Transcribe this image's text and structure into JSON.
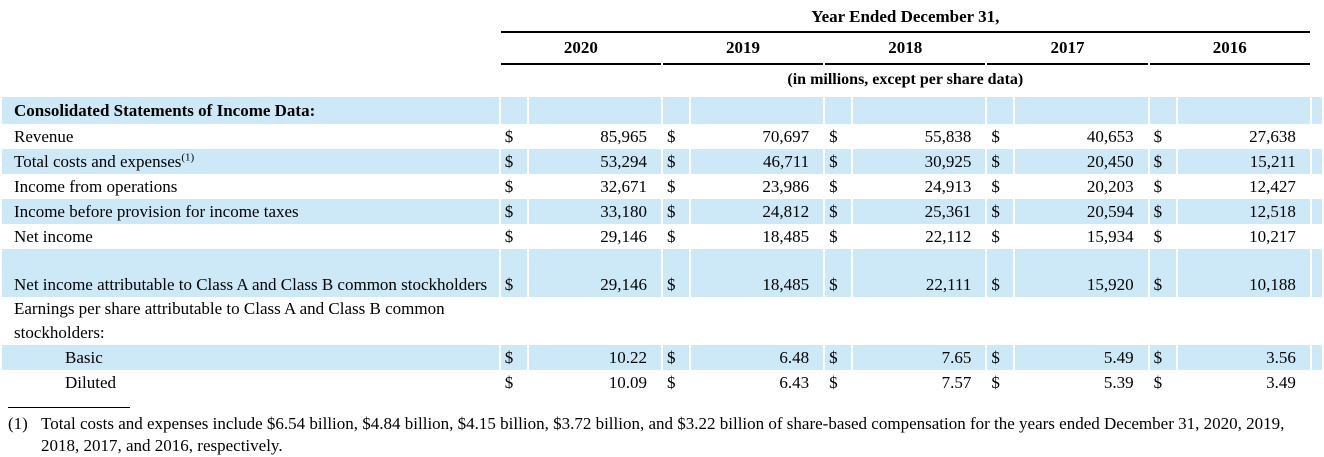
{
  "table": {
    "header": {
      "period_title": "Year Ended December 31,",
      "years": [
        "2020",
        "2019",
        "2018",
        "2017",
        "2016"
      ],
      "units_note": "(in millions, except per share data)"
    },
    "currency_symbol": "$",
    "section_title": "Consolidated Statements of Income Data:",
    "rows": [
      {
        "label": "Revenue",
        "values": [
          "85,965",
          "70,697",
          "55,838",
          "40,653",
          "27,638"
        ]
      },
      {
        "label": "Total costs and expenses",
        "footnote_ref": "(1)",
        "values": [
          "53,294",
          "46,711",
          "30,925",
          "20,450",
          "15,211"
        ]
      },
      {
        "label": "Income from operations",
        "values": [
          "32,671",
          "23,986",
          "24,913",
          "20,203",
          "12,427"
        ]
      },
      {
        "label": "Income before provision for income taxes",
        "values": [
          "33,180",
          "24,812",
          "25,361",
          "20,594",
          "12,518"
        ]
      },
      {
        "label": "Net income",
        "values": [
          "29,146",
          "18,485",
          "22,112",
          "15,934",
          "10,217"
        ]
      },
      {
        "label": "Net income attributable to Class A and Class B common stockholders",
        "values": [
          "29,146",
          "18,485",
          "22,111",
          "15,920",
          "10,188"
        ]
      },
      {
        "label": "Earnings per share attributable to Class A and Class B common stockholders:",
        "values": []
      },
      {
        "label": "Basic",
        "values": [
          "10.22",
          "6.48",
          "7.65",
          "5.49",
          "3.56"
        ]
      },
      {
        "label": "Diluted",
        "values": [
          "10.09",
          "6.43",
          "7.57",
          "5.39",
          "3.49"
        ]
      }
    ]
  },
  "footnote": {
    "marker": "(1)",
    "text": "Total costs and expenses include $6.54 billion, $4.84 billion, $4.15 billion, $3.72 billion, and $3.22 billion of share-based compensation for the years ended December 31, 2020, 2019, 2018, 2017, and 2016, respectively."
  },
  "colors": {
    "row_highlight": "#cde9f8",
    "rule": "#000000"
  }
}
